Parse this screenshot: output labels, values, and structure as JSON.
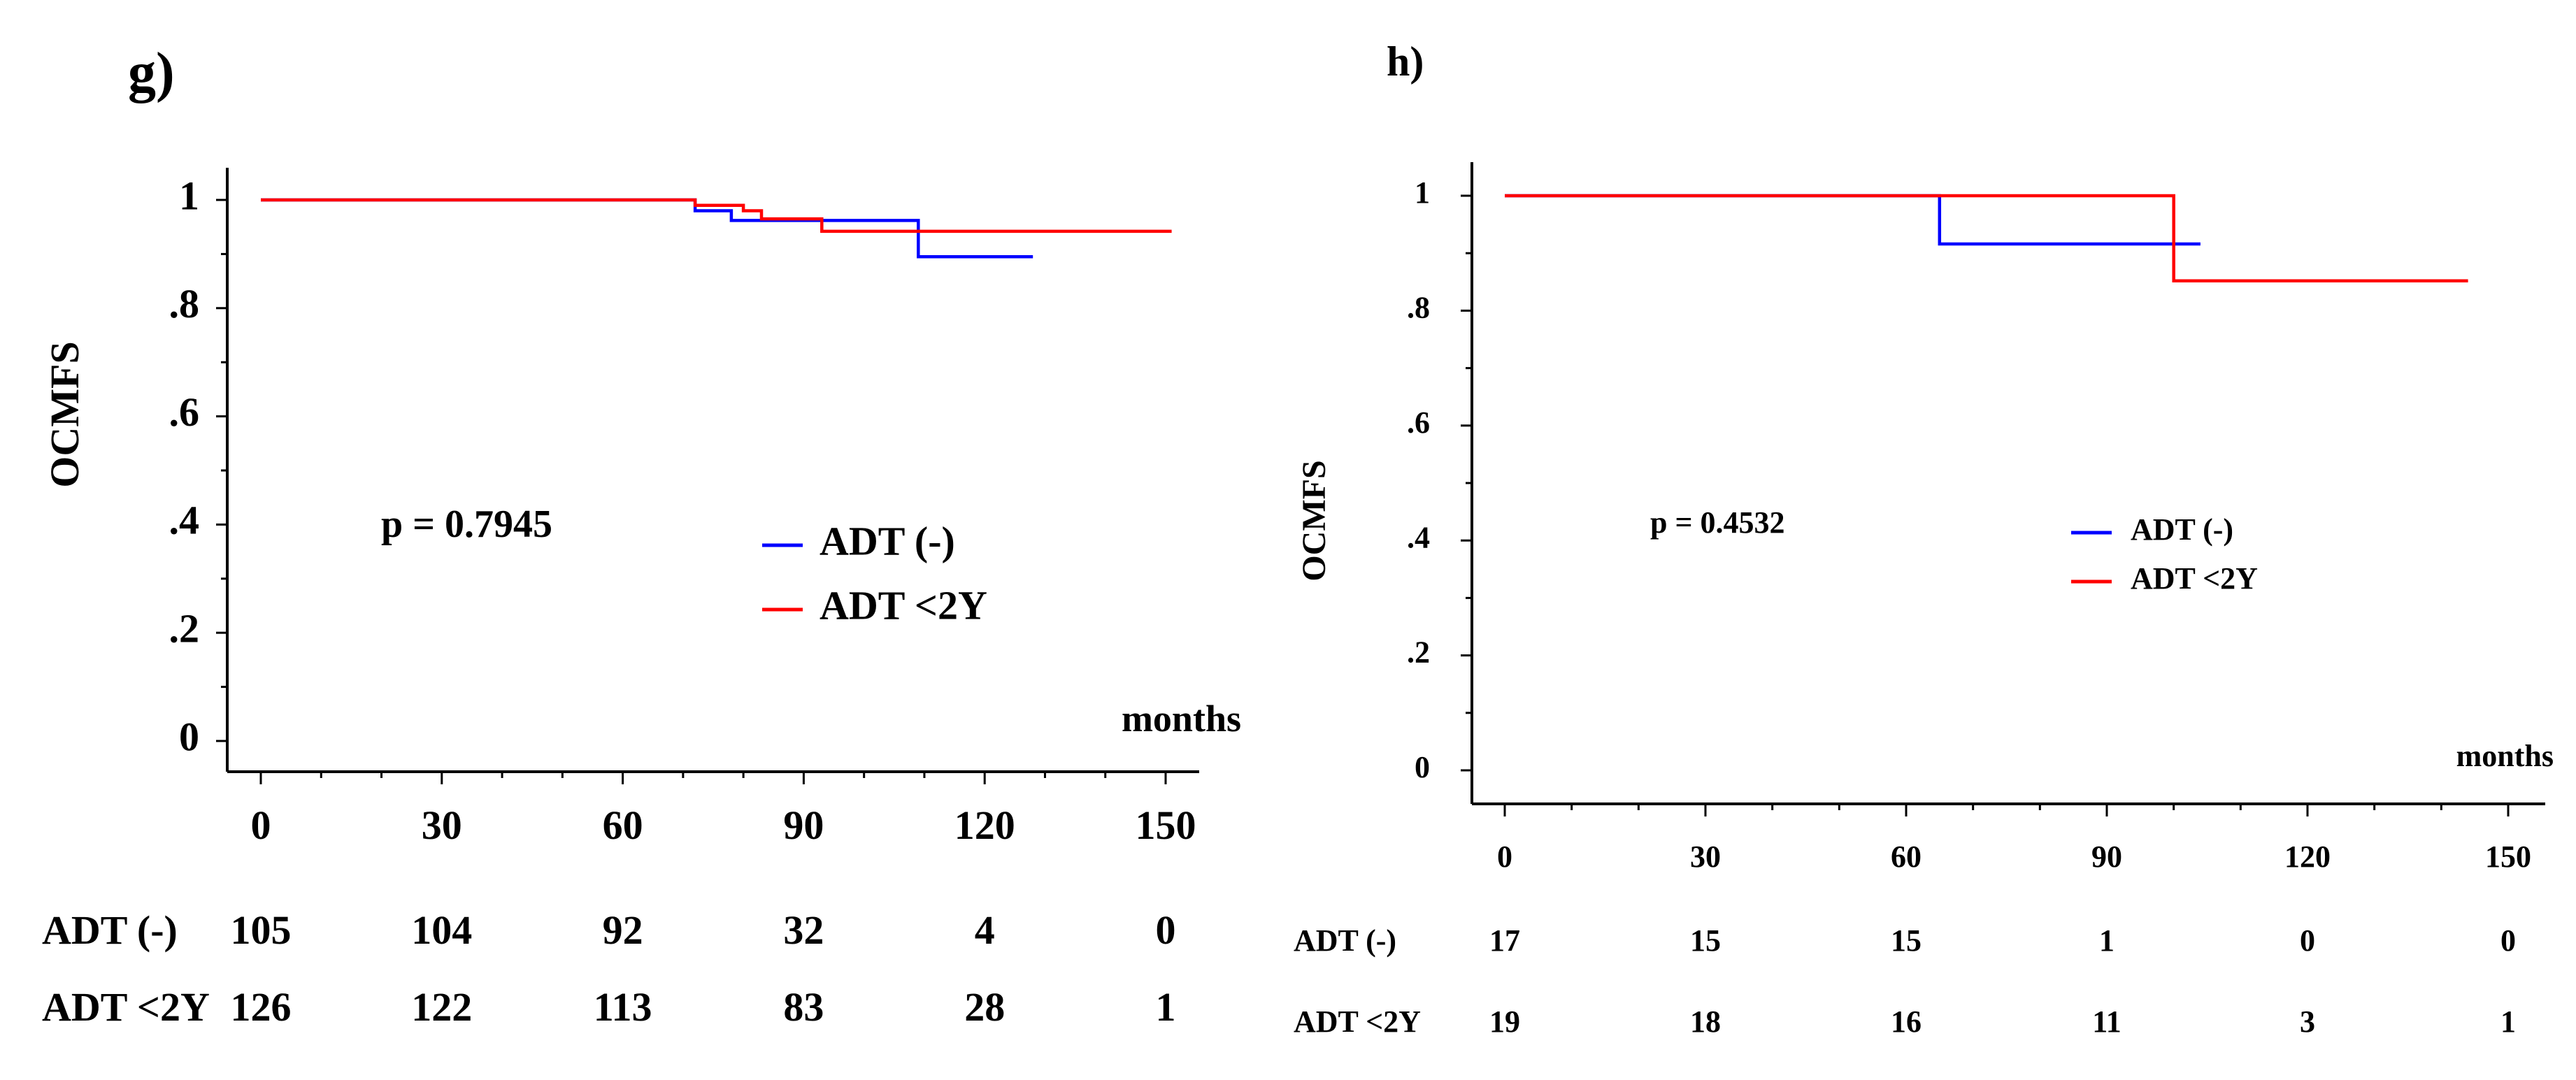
{
  "chart_data": [
    {
      "type": "line",
      "panel_label": "g)",
      "ylabel": "OCMFS",
      "xlabel": "months",
      "xlim": [
        0,
        150
      ],
      "ylim": [
        0,
        1
      ],
      "x_ticks": [
        0,
        30,
        60,
        90,
        120,
        150
      ],
      "x_tick_labels": [
        "0",
        "30",
        "60",
        "90",
        "120",
        "150"
      ],
      "y_ticks": [
        0,
        0.2,
        0.4,
        0.6,
        0.8,
        1
      ],
      "y_tick_labels": [
        "0",
        ".2",
        ".4",
        ".6",
        ".8",
        "1"
      ],
      "annotation": "p = 0.7945",
      "legend": "right",
      "series": [
        {
          "name": "ADT (-)",
          "color": "#0000ff",
          "x": [
            0,
            72,
            72,
            78,
            78,
            109,
            109,
            128
          ],
          "y": [
            1,
            1,
            0.98,
            0.98,
            0.962,
            0.962,
            0.895,
            0.895
          ]
        },
        {
          "name": "ADT <2Y",
          "color": "#ff0000",
          "x": [
            0,
            72,
            72,
            80,
            80,
            83,
            83,
            93,
            93,
            151
          ],
          "y": [
            1,
            1,
            0.99,
            0.99,
            0.98,
            0.98,
            0.965,
            0.965,
            0.942,
            0.942
          ]
        }
      ],
      "risk_table": {
        "times": [
          0,
          30,
          60,
          90,
          120,
          150
        ],
        "rows": [
          {
            "label": "ADT (-)",
            "values": [
              "105",
              "104",
              "92",
              "32",
              "4",
              "0"
            ]
          },
          {
            "label": "ADT <2Y",
            "values": [
              "126",
              "122",
              "113",
              "83",
              "28",
              "1"
            ]
          }
        ]
      }
    },
    {
      "type": "line",
      "panel_label": "h)",
      "ylabel": "OCMFS",
      "xlabel": "months",
      "xlim": [
        0,
        150
      ],
      "ylim": [
        0,
        1
      ],
      "x_ticks": [
        0,
        30,
        60,
        90,
        120,
        150
      ],
      "x_tick_labels": [
        "0",
        "30",
        "60",
        "90",
        "120",
        "150"
      ],
      "y_ticks": [
        0,
        0.2,
        0.4,
        0.6,
        0.8,
        1
      ],
      "y_tick_labels": [
        "0",
        ".2",
        ".4",
        ".6",
        ".8",
        "1"
      ],
      "annotation": "p = 0.4532",
      "legend": "right",
      "series": [
        {
          "name": "ADT (-)",
          "color": "#0000ff",
          "x": [
            0,
            65,
            65,
            104
          ],
          "y": [
            1,
            1,
            0.916,
            0.916
          ]
        },
        {
          "name": "ADT <2Y",
          "color": "#ff0000",
          "x": [
            0,
            100,
            100,
            144
          ],
          "y": [
            1,
            1,
            0.852,
            0.852
          ]
        }
      ],
      "risk_table": {
        "times": [
          0,
          30,
          60,
          90,
          120,
          150
        ],
        "rows": [
          {
            "label": "ADT (-)",
            "values": [
              "17",
              "15",
              "15",
              "1",
              "0",
              "0"
            ]
          },
          {
            "label": "ADT <2Y",
            "values": [
              "19",
              "18",
              "16",
              "11",
              "3",
              "1"
            ]
          }
        ]
      }
    }
  ]
}
